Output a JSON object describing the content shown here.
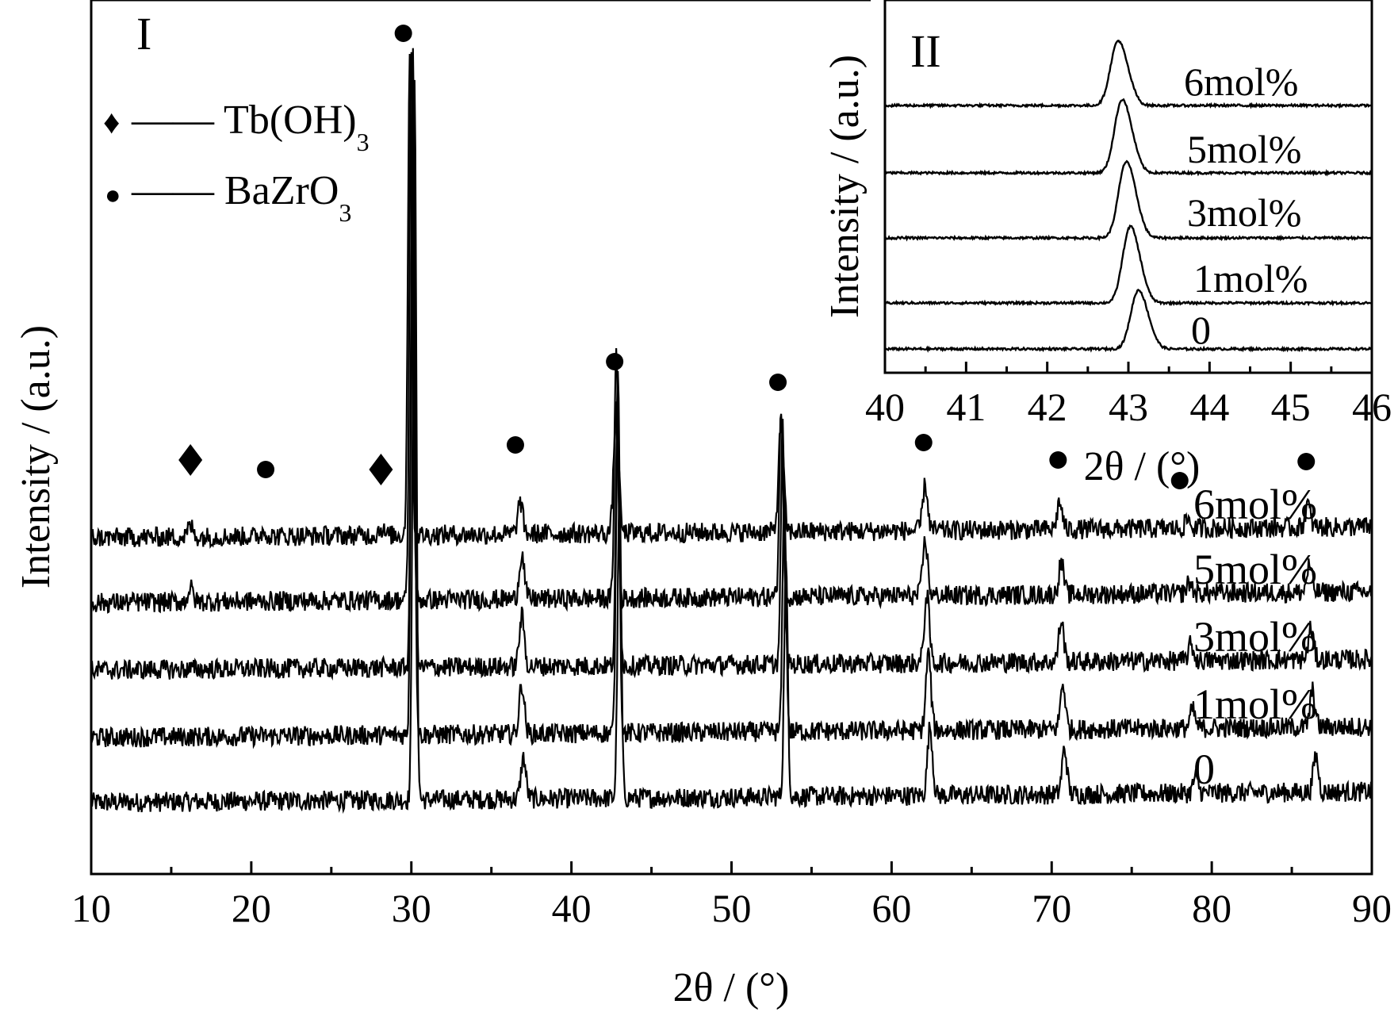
{
  "main_panel": {
    "label": "I",
    "legend": [
      {
        "marker": "diamond",
        "symbol": "♦",
        "text": "—— Tb(OH)",
        "subscript": "3"
      },
      {
        "marker": "circle",
        "symbol": "●",
        "text": "—— BaZrO",
        "subscript": "3"
      }
    ]
  },
  "inset_panel": {
    "label": "II"
  },
  "colors": {
    "line": "#000000",
    "background": "#ffffff"
  },
  "chart_data": [
    {
      "type": "line",
      "panel": "I",
      "xlabel": "2θ / (°)",
      "ylabel": "Intensity / (a.u.)",
      "xlim": [
        10,
        90
      ],
      "x_ticks": [
        10,
        20,
        30,
        40,
        50,
        60,
        70,
        80,
        90
      ],
      "x_minor_ticks": [
        15,
        25,
        35,
        45,
        55,
        65,
        75,
        85
      ],
      "y_ticks": "none",
      "grid": false,
      "series_stacking": "vertically offset, bottom to top",
      "series": [
        {
          "name": "0",
          "baseline": 0.0,
          "peaks": [
            [
              30.2,
              7.8
            ],
            [
              37.0,
              0.45
            ],
            [
              43.0,
              3.4
            ],
            [
              53.4,
              2.55
            ],
            [
              62.4,
              0.75
            ],
            [
              70.8,
              0.5
            ],
            [
              79.0,
              0.18
            ],
            [
              86.5,
              0.4
            ]
          ]
        },
        {
          "name": "1mol%",
          "baseline": 1.3,
          "peaks": [
            [
              30.1,
              7.2
            ],
            [
              36.9,
              0.55
            ],
            [
              42.9,
              3.5
            ],
            [
              53.3,
              2.6
            ],
            [
              62.3,
              0.85
            ],
            [
              70.7,
              0.5
            ],
            [
              78.8,
              0.2
            ],
            [
              86.3,
              0.4
            ]
          ]
        },
        {
          "name": "3mol%",
          "baseline": 2.05,
          "peaks": [
            [
              30.1,
              6.7
            ],
            [
              36.9,
              0.55
            ],
            [
              42.9,
              3.2
            ],
            [
              53.2,
              2.6
            ],
            [
              62.2,
              0.75
            ],
            [
              70.6,
              0.45
            ],
            [
              78.7,
              0.18
            ],
            [
              86.2,
              0.35
            ]
          ]
        },
        {
          "name": "5mol%",
          "baseline": 2.75,
          "peaks": [
            [
              30.0,
              6.1
            ],
            [
              36.9,
              0.5
            ],
            [
              42.8,
              2.7
            ],
            [
              53.1,
              2.1
            ],
            [
              62.1,
              0.6
            ],
            [
              70.6,
              0.35
            ],
            [
              78.6,
              0.12
            ],
            [
              86.1,
              0.3
            ],
            [
              16.2,
              0.15
            ]
          ]
        },
        {
          "name": "6mol%",
          "baseline": 3.45,
          "peaks": [
            [
              29.9,
              5.3
            ],
            [
              36.8,
              0.35
            ],
            [
              42.8,
              1.35
            ],
            [
              53.1,
              1.2
            ],
            [
              62.1,
              0.5
            ],
            [
              70.5,
              0.3
            ],
            [
              78.5,
              0.1
            ],
            [
              86.0,
              0.25
            ],
            [
              16.2,
              0.12
            ],
            [
              28.1,
              0.08
            ],
            [
              20.8,
              0.06
            ]
          ]
        }
      ],
      "annotations": [
        {
          "marker": "diamond",
          "x": 16.2,
          "phase": "Tb(OH)3"
        },
        {
          "marker": "diamond",
          "x": 28.1,
          "phase": "Tb(OH)3"
        },
        {
          "marker": "circle",
          "x": 20.9,
          "phase": "BaZrO3"
        },
        {
          "marker": "circle",
          "x": 29.5,
          "phase": "BaZrO3"
        },
        {
          "marker": "circle",
          "x": 36.5,
          "phase": "BaZrO3"
        },
        {
          "marker": "circle",
          "x": 42.7,
          "phase": "BaZrO3"
        },
        {
          "marker": "circle",
          "x": 52.9,
          "phase": "BaZrO3"
        },
        {
          "marker": "circle",
          "x": 62.0,
          "phase": "BaZrO3"
        },
        {
          "marker": "circle",
          "x": 70.4,
          "phase": "BaZrO3"
        },
        {
          "marker": "circle",
          "x": 78.0,
          "phase": "BaZrO3"
        },
        {
          "marker": "circle",
          "x": 85.9,
          "phase": "BaZrO3"
        }
      ]
    },
    {
      "type": "line",
      "panel": "II",
      "xlabel": "2θ / (°)",
      "ylabel": "Intensity / (a.u.)",
      "xlim": [
        40,
        46
      ],
      "x_ticks": [
        40,
        41,
        42,
        43,
        44,
        45,
        46
      ],
      "x_minor_ticks": [
        40.5,
        41.5,
        42.5,
        43.5,
        44.5,
        45.5
      ],
      "y_ticks": "none",
      "grid": false,
      "series": [
        {
          "name": "0",
          "baseline": 0.0,
          "peak_center": 43.1,
          "peak_height": 1.0
        },
        {
          "name": "1mol%",
          "baseline": 1.0,
          "peak_center": 43.0,
          "peak_height": 1.3
        },
        {
          "name": "3mol%",
          "baseline": 2.4,
          "peak_center": 42.95,
          "peak_height": 1.3
        },
        {
          "name": "5mol%",
          "baseline": 3.8,
          "peak_center": 42.9,
          "peak_height": 1.25
        },
        {
          "name": "6mol%",
          "baseline": 5.2,
          "peak_center": 42.85,
          "peak_height": 1.1
        }
      ]
    }
  ]
}
